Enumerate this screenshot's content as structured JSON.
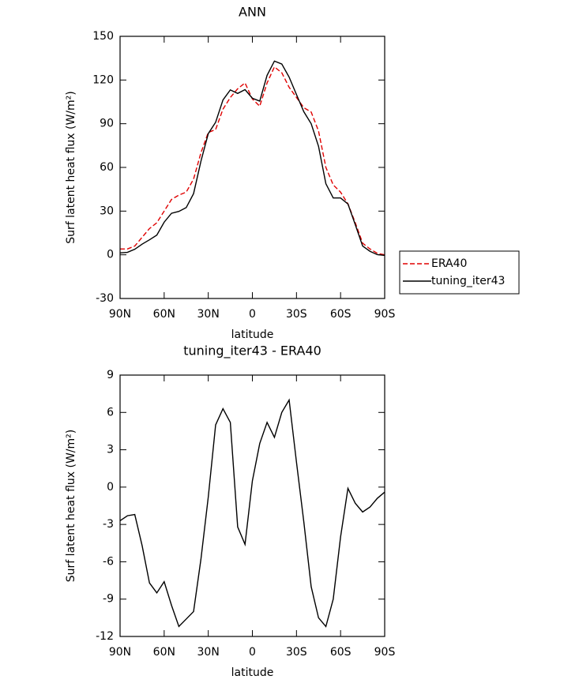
{
  "chart_data": [
    {
      "type": "line",
      "title": "ANN",
      "xlabel": "latitude",
      "ylabel": "Surf latent heat flux (W/m²)",
      "x": [
        90,
        85,
        80,
        75,
        70,
        65,
        60,
        55,
        50,
        45,
        40,
        35,
        30,
        25,
        20,
        15,
        10,
        5,
        0,
        -5,
        -10,
        -15,
        -20,
        -25,
        -30,
        -35,
        -40,
        -45,
        -50,
        -55,
        -60,
        -65,
        -70,
        -75,
        -80,
        -85,
        -90
      ],
      "xlim": [
        90,
        -90
      ],
      "xticks": [
        {
          "value": 90,
          "label": "90N"
        },
        {
          "value": 60,
          "label": "60N"
        },
        {
          "value": 30,
          "label": "30N"
        },
        0,
        {
          "value": -30,
          "label": "30S"
        },
        {
          "value": -60,
          "label": "60S"
        },
        {
          "value": -90,
          "label": "90S"
        }
      ],
      "ylim": [
        -30,
        150
      ],
      "yticks": [
        -30,
        0,
        30,
        60,
        90,
        120,
        150
      ],
      "series": [
        {
          "name": "ERA40",
          "color": "#e00000",
          "dashed": true,
          "values": [
            4,
            4,
            6,
            12,
            18,
            22,
            30,
            38,
            41,
            43,
            52,
            70,
            84,
            86,
            100,
            108,
            114,
            118,
            107,
            102,
            118,
            129,
            125,
            115,
            108,
            101,
            98,
            85,
            60,
            48,
            43,
            35,
            22,
            8,
            4,
            1,
            0
          ]
        },
        {
          "name": "tuning_iter43",
          "color": "#000000",
          "dashed": false,
          "values": [
            1.3,
            1.7,
            3.8,
            7.3,
            10.3,
            13.5,
            22.4,
            28.5,
            29.8,
            32.4,
            42,
            64.2,
            83.2,
            91,
            106.3,
            113.2,
            110.8,
            113.4,
            107.5,
            105.5,
            123.2,
            133,
            131,
            122,
            110,
            98.2,
            90,
            74.5,
            48.8,
            39,
            39,
            34.9,
            20.7,
            6,
            2.4,
            0.1,
            -0.4
          ]
        }
      ]
    },
    {
      "type": "line",
      "title": "tuning_iter43 - ERA40",
      "xlabel": "latitude",
      "ylabel": "Surf latent heat flux (W/m²)",
      "x": [
        90,
        85,
        80,
        75,
        70,
        65,
        60,
        55,
        50,
        45,
        40,
        35,
        30,
        25,
        20,
        15,
        10,
        5,
        0,
        -5,
        -10,
        -15,
        -20,
        -25,
        -30,
        -35,
        -40,
        -45,
        -50,
        -55,
        -60,
        -65,
        -70,
        -75,
        -80,
        -85,
        -90
      ],
      "xlim": [
        90,
        -90
      ],
      "xticks": [
        {
          "value": 90,
          "label": "90N"
        },
        {
          "value": 60,
          "label": "60N"
        },
        {
          "value": 30,
          "label": "30N"
        },
        0,
        {
          "value": -30,
          "label": "30S"
        },
        {
          "value": -60,
          "label": "60S"
        },
        {
          "value": -90,
          "label": "90S"
        }
      ],
      "ylim": [
        -12,
        9
      ],
      "yticks": [
        -12,
        -9,
        -6,
        -3,
        0,
        3,
        6,
        9
      ],
      "color": "#000000",
      "values": [
        -2.7,
        -2.3,
        -2.2,
        -4.7,
        -7.7,
        -8.5,
        -7.6,
        -9.5,
        -11.2,
        -10.6,
        -10,
        -5.8,
        -0.8,
        5,
        6.3,
        5.2,
        -3.2,
        -4.6,
        0.5,
        3.5,
        5.2,
        4,
        6,
        7,
        2,
        -2.8,
        -8,
        -10.5,
        -11.2,
        -9,
        -4,
        -0.1,
        -1.3,
        -2,
        -1.6,
        -0.9,
        -0.4
      ]
    }
  ]
}
